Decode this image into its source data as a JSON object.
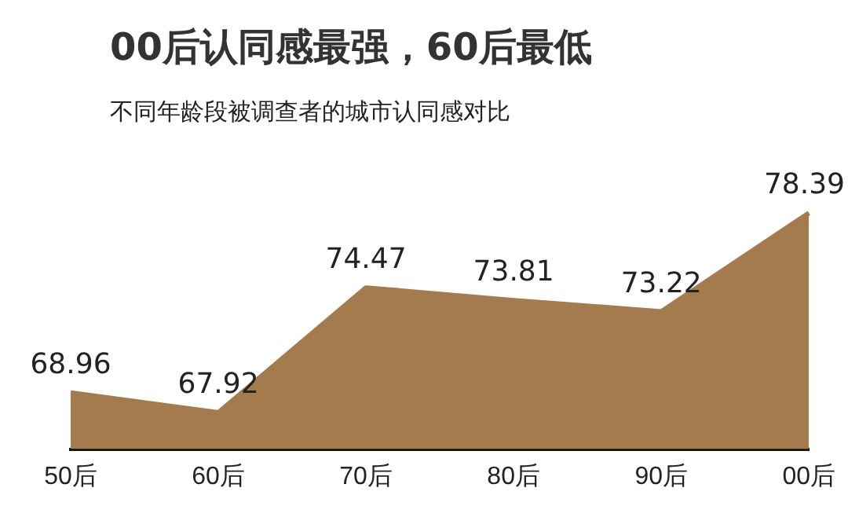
{
  "chart_data": {
    "type": "area",
    "title": "00后认同感最强，60后最低",
    "subtitle": "不同年龄段被调查者的城市认同感对比",
    "categories": [
      "50后",
      "60后",
      "70后",
      "80后",
      "90后",
      "00后"
    ],
    "values": [
      68.96,
      67.92,
      74.47,
      73.81,
      73.22,
      78.39
    ],
    "color": "#a47b4c",
    "data_labels": true,
    "legend": false,
    "grid": false,
    "marker": "none"
  }
}
